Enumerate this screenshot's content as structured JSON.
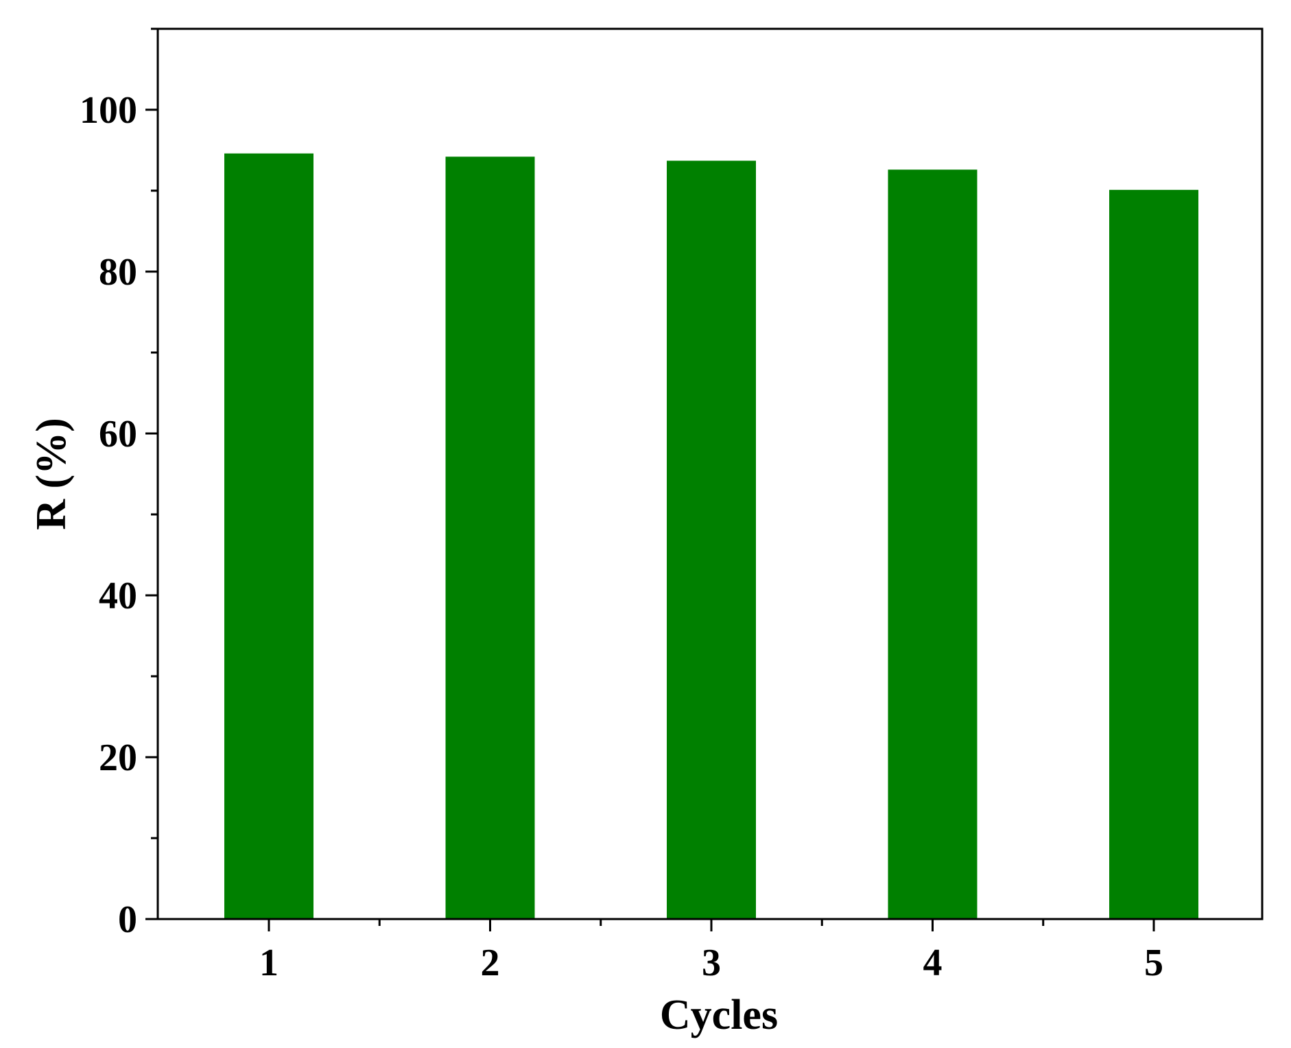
{
  "chart_data": {
    "type": "bar",
    "categories": [
      "1",
      "2",
      "3",
      "4",
      "5"
    ],
    "values": [
      94.6,
      94.2,
      93.7,
      92.6,
      90.1
    ],
    "title": "",
    "xlabel": "Cycles",
    "ylabel": "R (%)",
    "ylim": [
      0,
      110
    ],
    "yticks": [
      0,
      20,
      40,
      60,
      80,
      100
    ],
    "grid": false,
    "bar_color": "#008000"
  }
}
